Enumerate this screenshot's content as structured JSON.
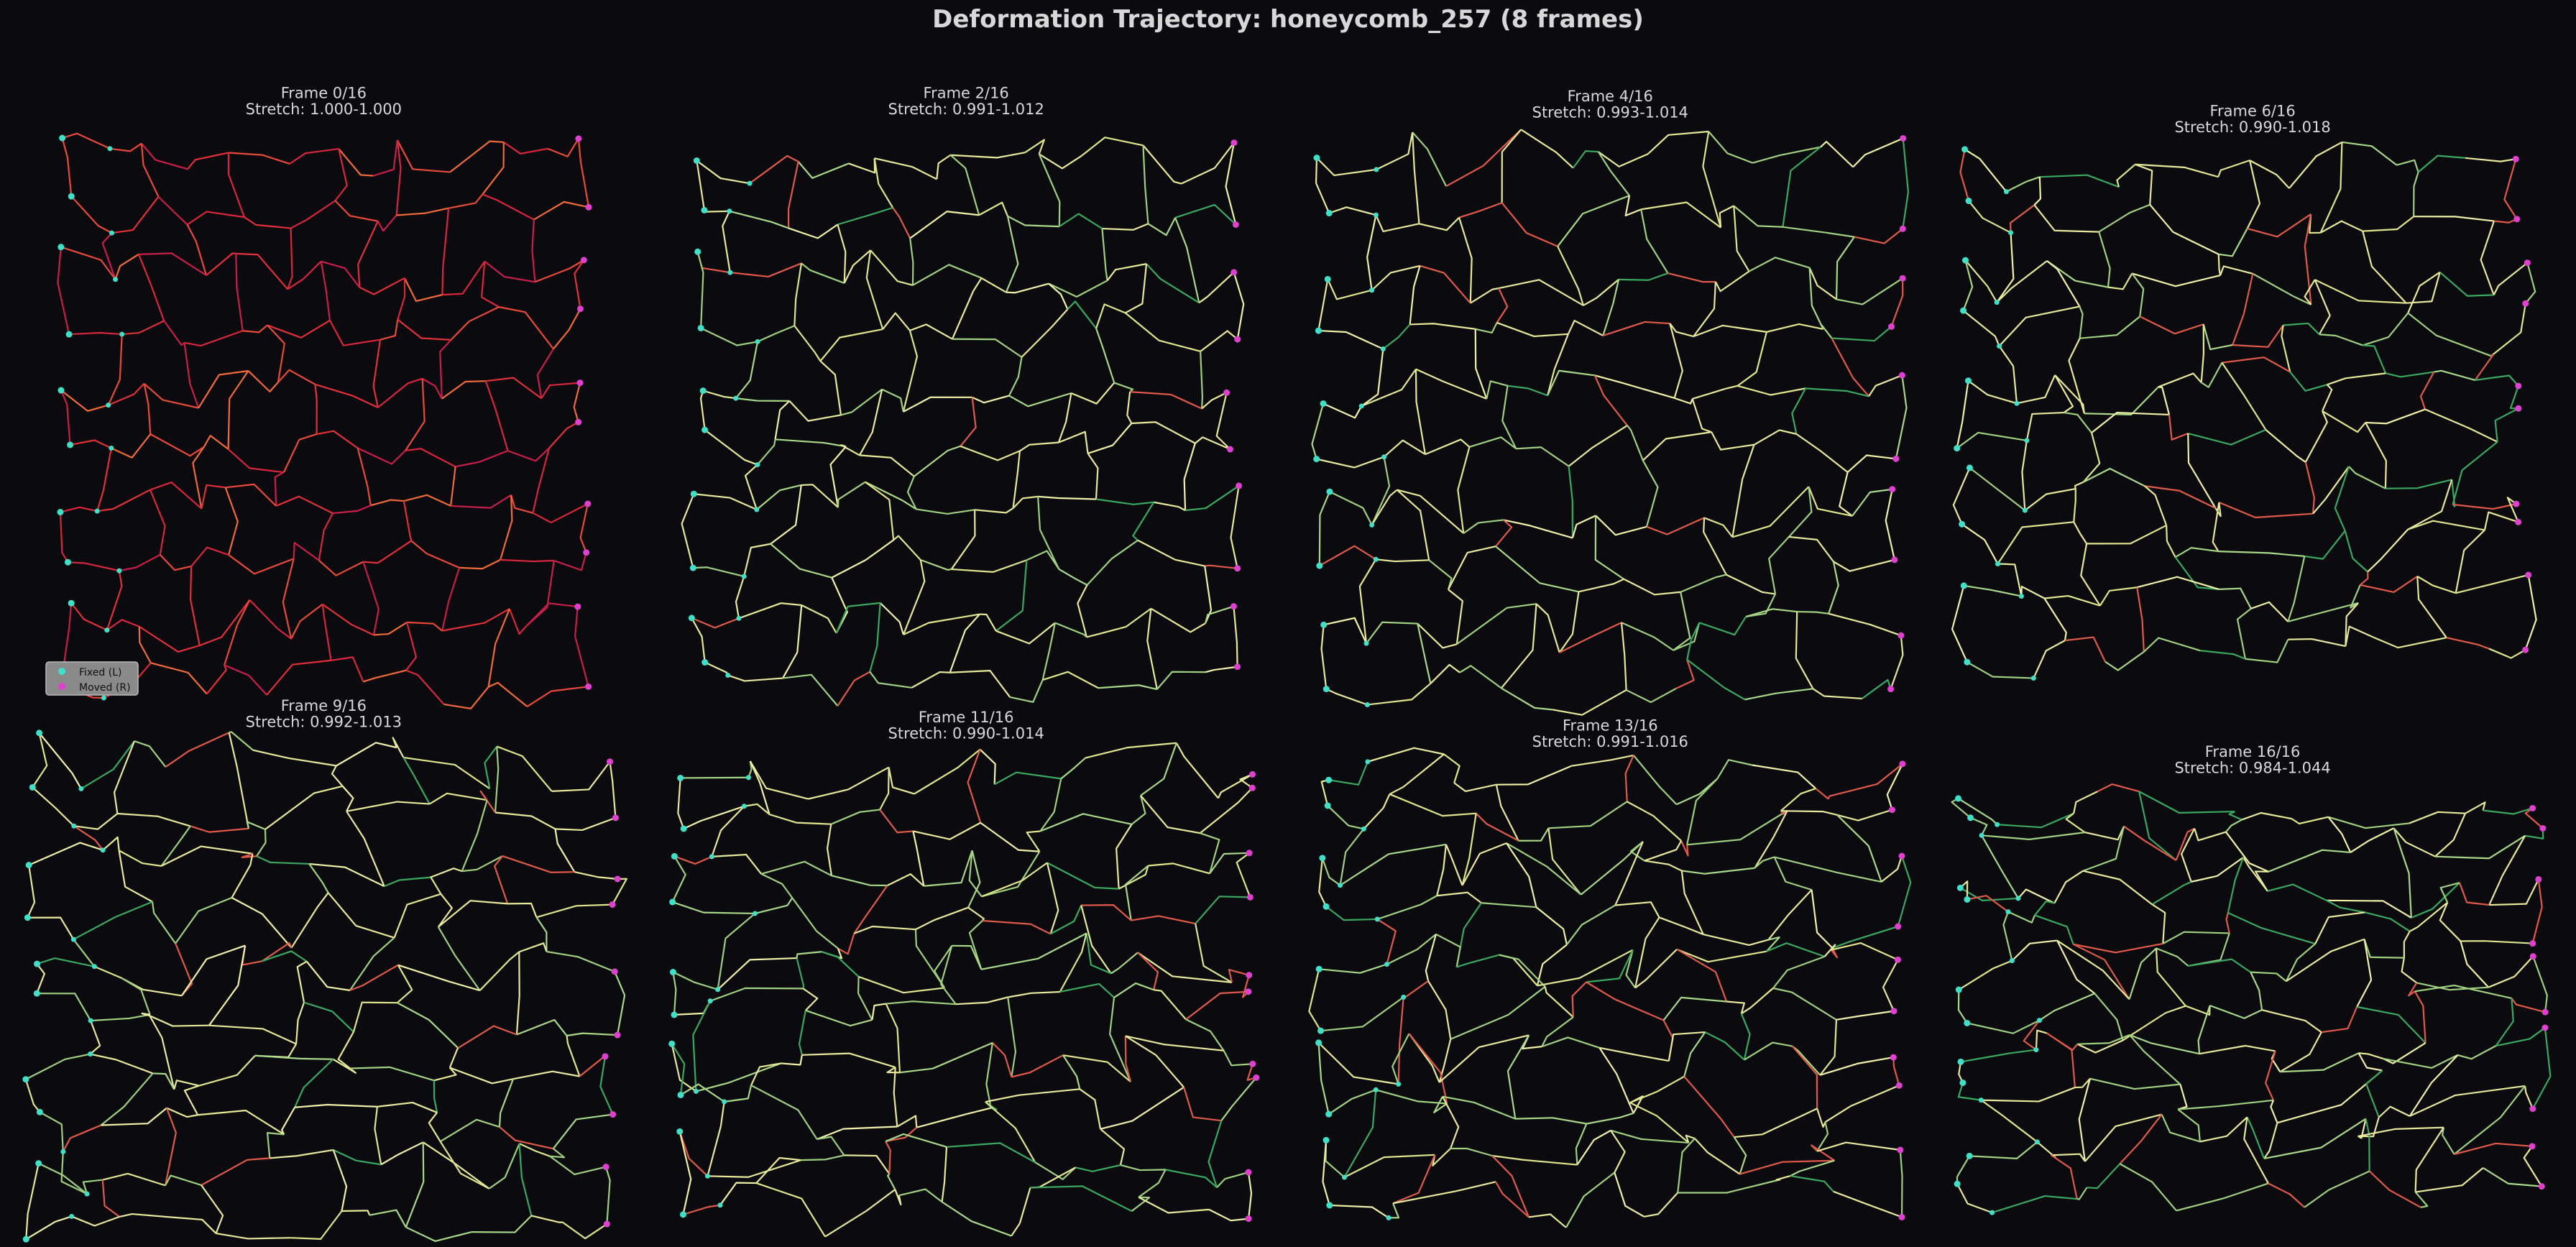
{
  "title": "Deformation Trajectory: honeycomb_257 (8 frames)",
  "panels": [
    {
      "frame": "Frame 0/16",
      "stretch": "Stretch: 1.000-1.000"
    },
    {
      "frame": "Frame 2/16",
      "stretch": "Stretch: 0.991-1.012"
    },
    {
      "frame": "Frame 4/16",
      "stretch": "Stretch: 0.993-1.014"
    },
    {
      "frame": "Frame 6/16",
      "stretch": "Stretch: 0.990-1.018"
    },
    {
      "frame": "Frame 9/16",
      "stretch": "Stretch: 0.992-1.013"
    },
    {
      "frame": "Frame 11/16",
      "stretch": "Stretch: 0.990-1.014"
    },
    {
      "frame": "Frame 13/16",
      "stretch": "Stretch: 0.991-1.016"
    },
    {
      "frame": "Frame 16/16",
      "stretch": "Stretch: 0.984-1.044"
    }
  ],
  "legend": {
    "fixed": "Fixed (L)",
    "moved": "Moved (R)"
  }
}
